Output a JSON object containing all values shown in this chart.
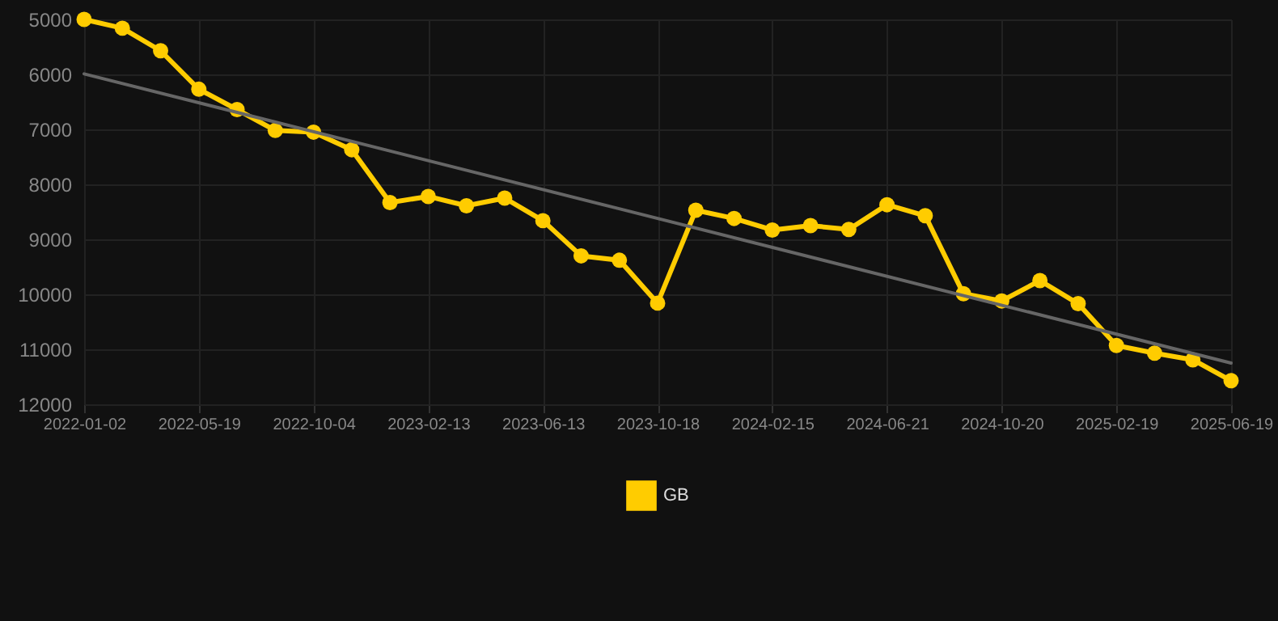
{
  "chart_data": {
    "type": "line",
    "categories": [
      "2022-01-02",
      null,
      null,
      "2022-05-19",
      null,
      null,
      "2022-10-04",
      null,
      null,
      "2023-02-13",
      null,
      null,
      "2023-06-13",
      null,
      null,
      "2023-10-18",
      null,
      null,
      "2024-02-15",
      null,
      null,
      "2024-06-21",
      null,
      null,
      "2024-10-20",
      null,
      null,
      "2025-02-19",
      null,
      null,
      "2025-06-19"
    ],
    "series": [
      {
        "name": "GB",
        "color": "#ffcc00",
        "values": [
          5000,
          5160,
          5570,
          6270,
          6640,
          7020,
          7050,
          7370,
          8330,
          8220,
          8390,
          8250,
          8660,
          9300,
          9380,
          10160,
          8470,
          8620,
          8830,
          8750,
          8820,
          8370,
          8570,
          9990,
          10120,
          9750,
          10170,
          10930,
          11070,
          11190,
          11570
        ]
      },
      {
        "type": "line",
        "color": "#666666",
        "values": [
          5990,
          null,
          null,
          null,
          null,
          null,
          null,
          null,
          null,
          null,
          null,
          null,
          null,
          null,
          null,
          null,
          null,
          null,
          null,
          null,
          null,
          null,
          null,
          null,
          null,
          null,
          null,
          null,
          null,
          null,
          11250
        ],
        "marker": "none"
      }
    ],
    "ylim": [
      12000,
      5000
    ],
    "yticks": [
      5000,
      6000,
      7000,
      8000,
      9000,
      10000,
      11000,
      12000
    ],
    "grid": true,
    "legend": "bottom",
    "marker": "circle",
    "line_style": "solid"
  }
}
